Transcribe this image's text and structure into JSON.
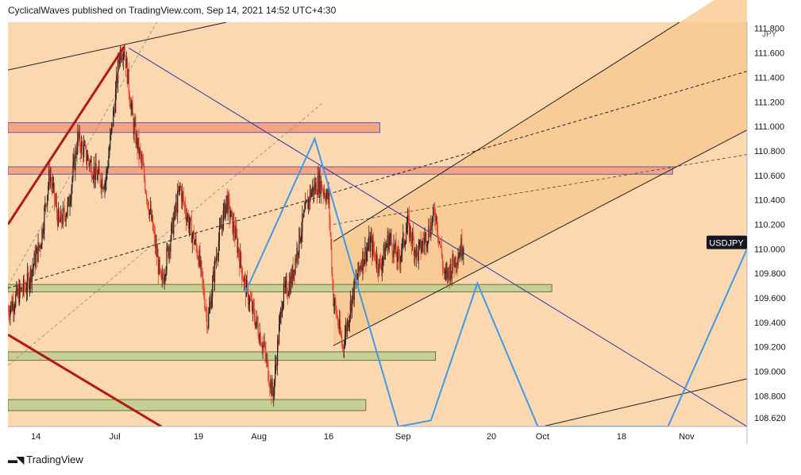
{
  "header": {
    "published": "CyclicalWaves published on TradingView.com, Sep 14, 2021 14:52 UTC+4:30"
  },
  "footer": {
    "brand": "TradingView"
  },
  "colors": {
    "background": "#fbd8b0",
    "channel": "#f9c891",
    "up_candle": "#222222",
    "down_candle": "#e8412a",
    "resistance_zone": "#f4a383",
    "support_zone": "#c7cf93",
    "trendline_blue": "#2f33a9",
    "zigzag": "#3d9be9",
    "major_trend": "#b01c13",
    "symbol_badge": "#131722"
  },
  "chart_data": {
    "type": "candlestick",
    "symbol": "USDJPY",
    "currency_label": "JPY",
    "x_ticks": [
      "14",
      "Jul",
      "19",
      "Aug",
      "16",
      "Sep",
      "20",
      "Oct",
      "18",
      "Nov"
    ],
    "y_ticks": [
      "111.800",
      "111.600",
      "111.400",
      "111.200",
      "111.000",
      "110.800",
      "110.600",
      "110.400",
      "110.200",
      "110.000",
      "109.800",
      "109.600",
      "109.400",
      "109.200",
      "109.000",
      "108.800",
      "108.620"
    ],
    "last_price_label": "USDJPY",
    "ylim": [
      108.55,
      111.85
    ],
    "xlim": [
      "2021-06-08",
      "2021-11-14"
    ],
    "close_path": [
      [
        "2021-06-08",
        109.5
      ],
      [
        "2021-06-10",
        109.62
      ],
      [
        "2021-06-12",
        109.7
      ],
      [
        "2021-06-15",
        110.05
      ],
      [
        "2021-06-17",
        110.62
      ],
      [
        "2021-06-19",
        110.2
      ],
      [
        "2021-06-21",
        110.35
      ],
      [
        "2021-06-23",
        110.9
      ],
      [
        "2021-06-25",
        110.75
      ],
      [
        "2021-06-27",
        110.6
      ],
      [
        "2021-06-29",
        110.55
      ],
      [
        "2021-07-01",
        111.2
      ],
      [
        "2021-07-02",
        111.6
      ],
      [
        "2021-07-03",
        111.65
      ],
      [
        "2021-07-05",
        111.0
      ],
      [
        "2021-07-07",
        110.65
      ],
      [
        "2021-07-09",
        110.2
      ],
      [
        "2021-07-11",
        109.7
      ],
      [
        "2021-07-13",
        110.1
      ],
      [
        "2021-07-15",
        110.5
      ],
      [
        "2021-07-17",
        110.2
      ],
      [
        "2021-07-19",
        109.95
      ],
      [
        "2021-07-21",
        109.4
      ],
      [
        "2021-07-23",
        110.0
      ],
      [
        "2021-07-25",
        110.4
      ],
      [
        "2021-07-27",
        110.1
      ],
      [
        "2021-07-29",
        109.7
      ],
      [
        "2021-07-31",
        109.45
      ],
      [
        "2021-08-02",
        109.2
      ],
      [
        "2021-08-04",
        108.8
      ],
      [
        "2021-08-06",
        109.6
      ],
      [
        "2021-08-08",
        109.75
      ],
      [
        "2021-08-10",
        110.15
      ],
      [
        "2021-08-12",
        110.45
      ],
      [
        "2021-08-14",
        110.55
      ],
      [
        "2021-08-16",
        110.4
      ],
      [
        "2021-08-17",
        109.6
      ],
      [
        "2021-08-19",
        109.2
      ],
      [
        "2021-08-21",
        109.6
      ],
      [
        "2021-08-23",
        109.9
      ],
      [
        "2021-08-25",
        110.05
      ],
      [
        "2021-08-27",
        109.85
      ],
      [
        "2021-08-29",
        110.1
      ],
      [
        "2021-08-31",
        109.9
      ],
      [
        "2021-09-02",
        110.2
      ],
      [
        "2021-09-04",
        109.95
      ],
      [
        "2021-09-06",
        110.1
      ],
      [
        "2021-09-08",
        110.3
      ],
      [
        "2021-09-10",
        109.75
      ],
      [
        "2021-09-12",
        109.9
      ],
      [
        "2021-09-14",
        110.05
      ]
    ],
    "resistance_zones": [
      {
        "x1": "2021-06-08",
        "x2": "2021-08-27",
        "y1": 110.95,
        "y2": 111.03
      },
      {
        "x1": "2021-06-08",
        "x2": "2021-10-29",
        "y1": 110.61,
        "y2": 110.67
      }
    ],
    "support_zones": [
      {
        "x1": "2021-06-08",
        "x2": "2021-10-03",
        "y1": 109.65,
        "y2": 109.71
      },
      {
        "x1": "2021-06-08",
        "x2": "2021-09-08",
        "y1": 109.09,
        "y2": 109.16
      },
      {
        "x1": "2021-06-08",
        "x2": "2021-08-24",
        "y1": 108.68,
        "y2": 108.77
      }
    ],
    "channel": {
      "lower": [
        [
          "2021-08-17",
          109.21
        ],
        [
          "2021-11-14",
          110.97
        ]
      ],
      "upper": [
        [
          "2021-08-17",
          110.06
        ],
        [
          "2021-11-14",
          112.2
        ]
      ],
      "mid": [
        [
          "2021-06-08",
          109.68
        ],
        [
          "2021-11-14",
          111.45
        ]
      ]
    },
    "blue_trendline": [
      [
        "2021-07-04",
        111.64
      ],
      [
        "2021-11-14",
        108.55
      ]
    ],
    "zigzag": [
      [
        "2021-07-29",
        109.64
      ],
      [
        "2021-08-13",
        110.9
      ],
      [
        "2021-08-31",
        108.55
      ],
      [
        "2021-09-07",
        108.6
      ],
      [
        "2021-09-17",
        109.72
      ],
      [
        "2021-09-30",
        108.55
      ],
      [
        "2021-10-28",
        108.55
      ],
      [
        "2021-11-14",
        110.0
      ]
    ],
    "major_trend": [
      [
        "2021-06-08",
        110.2
      ],
      [
        "2021-07-03",
        111.65
      ]
    ],
    "major_trend_lower": [
      [
        "2021-06-08",
        109.3
      ],
      [
        "2021-07-11",
        108.55
      ]
    ],
    "top_line": [
      [
        "2021-06-08",
        111.46
      ],
      [
        "2021-07-25",
        111.85
      ]
    ],
    "low_line": [
      [
        "2021-10-01",
        108.55
      ],
      [
        "2021-11-14",
        108.94
      ]
    ],
    "dashed_upper_fan": [
      [
        "2021-06-08",
        109.05
      ],
      [
        "2021-08-15",
        111.2
      ]
    ],
    "dashed_lower_fan": [
      [
        "2021-06-08",
        109.7
      ],
      [
        "2021-07-10",
        111.85
      ]
    ],
    "dashed_short": [
      [
        "2021-08-17",
        110.2
      ],
      [
        "2021-11-14",
        110.77
      ]
    ]
  }
}
